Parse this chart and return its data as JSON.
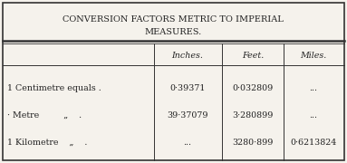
{
  "title_line1": "CONVERSION FACTORS METRIC TO IMPERIAL",
  "title_line2": "MEASURES.",
  "col_headers": [
    "Inches.",
    "Feet.",
    "Miles."
  ],
  "row_labels": [
    "1 Centimetre equals .",
    "· Metre         „    .",
    "1 Kilometre    „    ."
  ],
  "table_data": [
    [
      "0·39371",
      "0·032809",
      "..."
    ],
    [
      "39·37079",
      "3·280899",
      "..."
    ],
    [
      "...",
      "3280·899",
      "0·6213824"
    ]
  ],
  "bg_color": "#f5f2ec",
  "border_color": "#333333",
  "text_color": "#222222",
  "title_fontsize": 7.0,
  "header_fontsize": 6.8,
  "data_fontsize": 6.8,
  "label_fontsize": 6.8
}
